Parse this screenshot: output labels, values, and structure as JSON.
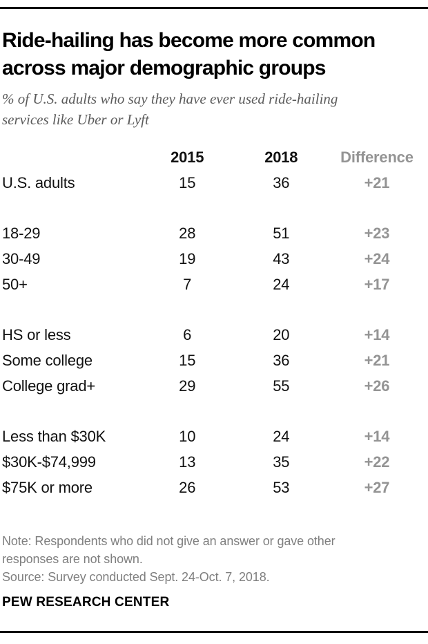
{
  "colors": {
    "rule": "#000000",
    "title_text": "#000000",
    "subtitle_text": "#5b5b5b",
    "body_text": "#111111",
    "difference_gray": "#949494",
    "note_gray": "#7f7f7f",
    "background": "#ffffff"
  },
  "header": {
    "title_line1": "Ride-hailing has become more common",
    "title_line2": "across major demographic groups",
    "subtitle_line1": "% of U.S. adults who say they have ever used ride-hailing",
    "subtitle_line2": "services like Uber or Lyft"
  },
  "columns": {
    "col_2015": "2015",
    "col_2018": "2018",
    "col_diff": "Difference"
  },
  "chart_data": {
    "type": "table",
    "title": "Ride-hailing has become more common across major demographic groups",
    "subtitle": "% of U.S. adults who say they have ever used ride-hailing services like Uber or Lyft",
    "columns": [
      "",
      "2015",
      "2018",
      "Difference"
    ],
    "groups": [
      {
        "rows": [
          {
            "label": "U.S. adults",
            "y2015": "15",
            "y2018": "36",
            "diff": "+21"
          }
        ]
      },
      {
        "rows": [
          {
            "label": "18-29",
            "y2015": "28",
            "y2018": "51",
            "diff": "+23"
          },
          {
            "label": "30-49",
            "y2015": "19",
            "y2018": "43",
            "diff": "+24"
          },
          {
            "label": "50+",
            "y2015": "7",
            "y2018": "24",
            "diff": "+17"
          }
        ]
      },
      {
        "rows": [
          {
            "label": "HS or less",
            "y2015": "6",
            "y2018": "20",
            "diff": "+14"
          },
          {
            "label": "Some college",
            "y2015": "15",
            "y2018": "36",
            "diff": "+21"
          },
          {
            "label": "College grad+",
            "y2015": "29",
            "y2018": "55",
            "diff": "+26"
          }
        ]
      },
      {
        "rows": [
          {
            "label": "Less than $30K",
            "y2015": "10",
            "y2018": "24",
            "diff": "+14"
          },
          {
            "label": "$30K-$74,999",
            "y2015": "13",
            "y2018": "35",
            "diff": "+22"
          },
          {
            "label": "$75K or more",
            "y2015": "26",
            "y2018": "53",
            "diff": "+27"
          }
        ]
      }
    ]
  },
  "footer": {
    "note_line1": "Note: Respondents who did not give an answer or gave other",
    "note_line2": "responses are not shown.",
    "source": "Source: Survey conducted Sept. 24-Oct. 7, 2018.",
    "brand": "PEW RESEARCH CENTER"
  }
}
